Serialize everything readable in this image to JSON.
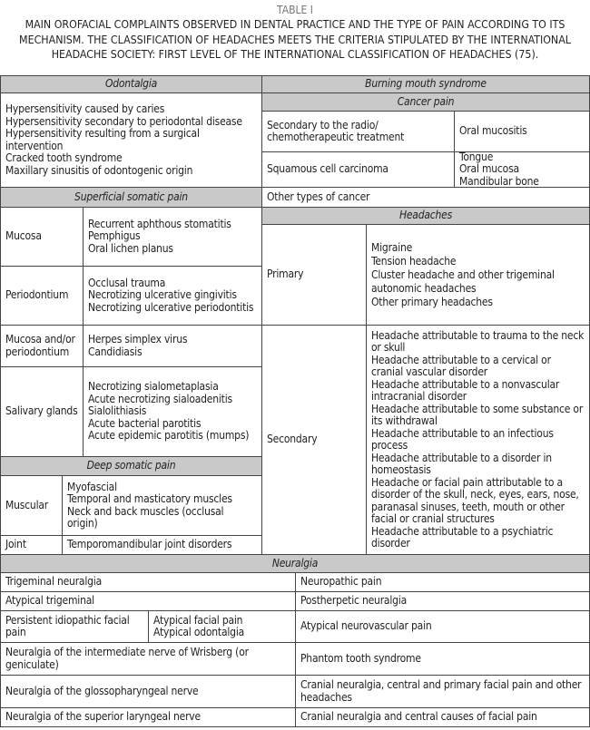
{
  "table_label": "TABLE I",
  "caption": "MAIN OROFACIAL COMPLAINTS OBSERVED IN DENTAL PRACTICE AND THE TYPE OF PAIN ACCORDING TO ITS MECHANISM. THE CLASSIFICATION OF HEADACHES MEETS THE CRITERIA STIPULATED BY THE INTERNATIONAL HEADACHE SOCIETY: FIRST LEVEL OF THE INTERNATIONAL CLASSIFICATION OF HEADACHES (75).",
  "header_color": "#c9c9c9",
  "odontalgia": {
    "title": "Odontalgia",
    "items": "Hypersensitivity caused by caries\nHypersensitivity secondary to periodontal disease\nHypersensitivity resulting from a surgical intervention\nCracked tooth syndrome\nMaxillary sinusitis of odontogenic origin"
  },
  "burning": {
    "title": "Burning mouth syndrome"
  },
  "cancer": {
    "title": "Cancer pain",
    "rows": [
      {
        "label": "Secondary to the radio/ chemotherapeutic treatment",
        "value": "Oral mucositis"
      },
      {
        "label": "Squamous cell carcinoma",
        "value": "Tongue\nOral mucosa\nMandibular bone"
      }
    ],
    "other": "Other types of cancer"
  },
  "superficial": {
    "title": "Superficial somatic pain",
    "rows": [
      {
        "label": "Mucosa",
        "value": "Recurrent aphthous stomatitis\nPemphigus\nOral lichen planus"
      },
      {
        "label": "Periodontium",
        "value": "Occlusal trauma\nNecrotizing ulcerative gingivitis\nNecrotizing ulcerative periodontitis"
      },
      {
        "label": "Mucosa and/or periodontium",
        "value": "Herpes simplex virus\nCandidiasis"
      },
      {
        "label": "Salivary glands",
        "value": "Necrotizing sialometaplasia\nAcute necrotizing sialoadenitis\nSialolithiasis\nAcute bacterial parotitis\nAcute epidemic parotitis (mumps)"
      }
    ]
  },
  "deep": {
    "title": "Deep somatic pain",
    "rows": [
      {
        "label": "Muscular",
        "value": "Myofascial\nTemporal and masticatory muscles\nNeck and back muscles (occlusal origin)"
      },
      {
        "label": "Joint",
        "value": "Temporomandibular joint disorders"
      }
    ]
  },
  "headaches": {
    "title": "Headaches",
    "rows": [
      {
        "label": "Primary",
        "value": "Migraine\nTension headache\nCluster headache and other trigeminal autonomic headaches\nOther primary headaches"
      },
      {
        "label": "Secondary",
        "value": "Headache attributable to trauma to the neck or skull\nHeadache attributable to a cervical or cranial vascular disorder\nHeadache attributable to a nonvascular intracranial disorder\nHeadache attributable to some substance or its withdrawal\nHeadache attributable to an infectious process\nHeadache attributable to a disorder in homeostasis\nHeadache or facial pain attributable to a disorder of the skull, neck, eyes, ears, nose, paranasal sinuses, teeth, mouth or other facial or cranial structures\nHeadache attributable to a psychiatric disorder"
      }
    ]
  },
  "neuralgia": {
    "title": "Neuralgia",
    "left": [
      "Trigeminal neuralgia",
      "Atypical trigeminal",
      "Persistent idiopathic facial pain",
      "Neuralgia of the intermediate nerve of Wrisberg (or geniculate)",
      "Neuralgia of the glossopharyngeal nerve",
      "Neuralgia of the superior laryngeal nerve"
    ],
    "persistent_sub": "Atypical facial pain\nAtypical odontalgia",
    "right": [
      "Neuropathic pain",
      "Postherpetic neuralgia",
      "Atypical neurovascular pain",
      "Phantom tooth syndrome",
      "Cranial neuralgia, central and primary facial pain and other headaches",
      "Cranial neuralgia and central causes of facial pain"
    ]
  }
}
